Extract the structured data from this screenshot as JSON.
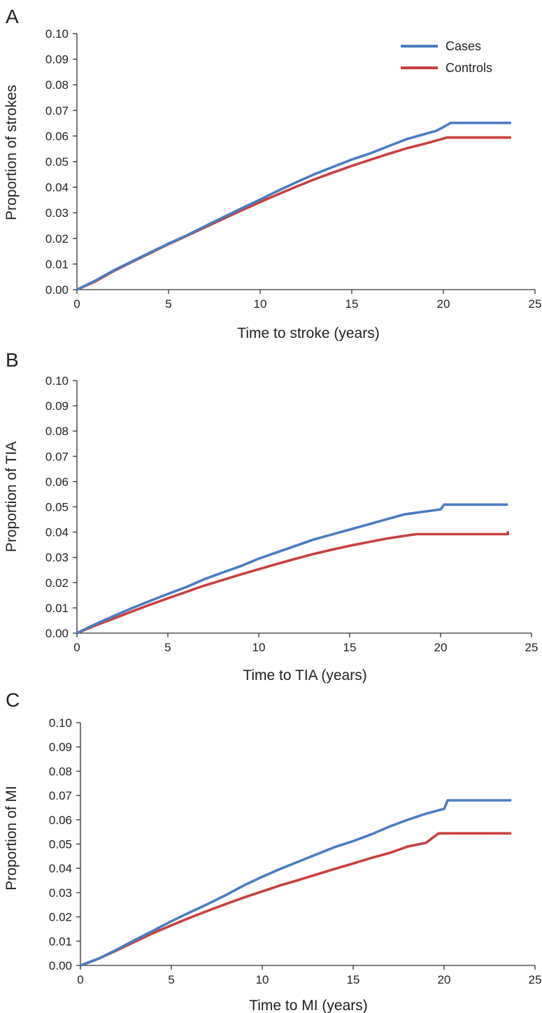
{
  "legend": {
    "entries": [
      {
        "name": "Cases",
        "color": "#4a7cc2"
      },
      {
        "name": "Controls",
        "color": "#c8403f"
      }
    ],
    "placement": "top-right of panel A"
  },
  "chart_data": [
    {
      "type": "line",
      "panel": "A",
      "title": "",
      "xlabel": "Time to stroke (years)",
      "ylabel": "Proportion of strokes",
      "xlim": [
        0,
        25
      ],
      "ylim": [
        0,
        0.1
      ],
      "xticks": [
        "0",
        "5",
        "10",
        "15",
        "20",
        "25"
      ],
      "yticks": [
        "0.00",
        "0.01",
        "0.02",
        "0.03",
        "0.04",
        "0.05",
        "0.06",
        "0.07",
        "0.08",
        "0.09",
        "0.10"
      ],
      "grid": false,
      "step": true,
      "series": [
        {
          "name": "Cases",
          "color": "#4a7cc2",
          "x": [
            0,
            1,
            2,
            3,
            4,
            5,
            6,
            7,
            8,
            9,
            10,
            11,
            12,
            13,
            14,
            15,
            16,
            17,
            18,
            19,
            19.6,
            20.0,
            20.4,
            23.7
          ],
          "y": [
            0,
            0.0035,
            0.0075,
            0.011,
            0.0145,
            0.018,
            0.0212,
            0.0248,
            0.0283,
            0.0318,
            0.0352,
            0.0387,
            0.042,
            0.0452,
            0.048,
            0.0508,
            0.0532,
            0.056,
            0.0588,
            0.0608,
            0.062,
            0.0635,
            0.0651,
            0.0651
          ]
        },
        {
          "name": "Controls",
          "color": "#c8403f",
          "x": [
            0,
            1,
            2,
            3,
            4,
            5,
            6,
            7,
            8,
            9,
            10,
            11,
            12,
            13,
            14,
            15,
            16,
            17,
            18,
            19,
            19.5,
            20.2,
            23.7
          ],
          "y": [
            0,
            0.0032,
            0.0072,
            0.0108,
            0.0143,
            0.0178,
            0.021,
            0.0244,
            0.0277,
            0.031,
            0.0342,
            0.0373,
            0.0403,
            0.0432,
            0.0458,
            0.0483,
            0.0507,
            0.053,
            0.0552,
            0.057,
            0.058,
            0.0594,
            0.0594
          ]
        }
      ]
    },
    {
      "type": "line",
      "panel": "B",
      "title": "",
      "xlabel": "Time to TIA (years)",
      "ylabel": "Proportion of TIA",
      "xlim": [
        0,
        25
      ],
      "ylim": [
        0,
        0.1
      ],
      "xticks": [
        "0",
        "5",
        "10",
        "15",
        "20",
        "25"
      ],
      "yticks": [
        "0.00",
        "0.01",
        "0.02",
        "0.03",
        "0.04",
        "0.05",
        "0.06",
        "0.07",
        "0.08",
        "0.09",
        "0.10"
      ],
      "grid": false,
      "step": true,
      "series": [
        {
          "name": "Cases",
          "color": "#4a7cc2",
          "x": [
            0,
            1,
            2,
            3,
            4,
            5,
            6,
            7,
            8,
            9,
            10,
            11,
            12,
            13,
            14,
            15,
            16,
            17,
            18,
            19,
            20,
            20.2,
            23.7
          ],
          "y": [
            0,
            0.0035,
            0.0067,
            0.0098,
            0.0127,
            0.0155,
            0.0182,
            0.0213,
            0.024,
            0.0265,
            0.0295,
            0.032,
            0.0345,
            0.037,
            0.039,
            0.041,
            0.043,
            0.045,
            0.047,
            0.048,
            0.049,
            0.0509,
            0.0509
          ]
        },
        {
          "name": "Controls",
          "color": "#c8403f",
          "x": [
            0,
            1,
            2,
            3,
            4,
            5,
            6,
            7,
            8,
            9,
            10,
            11,
            12,
            13,
            14,
            15,
            16,
            17,
            18,
            18.7,
            23.7
          ],
          "y": [
            0,
            0.003,
            0.0057,
            0.0085,
            0.0112,
            0.0138,
            0.0163,
            0.0188,
            0.021,
            0.0232,
            0.0253,
            0.0274,
            0.0294,
            0.0313,
            0.033,
            0.0346,
            0.036,
            0.0374,
            0.0385,
            0.0392,
            0.0404
          ]
        }
      ]
    },
    {
      "type": "line",
      "panel": "C",
      "title": "",
      "xlabel": "Time to MI (years)",
      "ylabel": "Proportion of MI",
      "xlim": [
        0,
        25
      ],
      "ylim": [
        0,
        0.1
      ],
      "xticks": [
        "0",
        "5",
        "10",
        "15",
        "20",
        "25"
      ],
      "yticks": [
        "0.00",
        "0.01",
        "0.02",
        "0.03",
        "0.04",
        "0.05",
        "0.06",
        "0.07",
        "0.08",
        "0.09",
        "0.10"
      ],
      "grid": false,
      "step": true,
      "series": [
        {
          "name": "Cases",
          "color": "#4a7cc2",
          "x": [
            0,
            1,
            2,
            3,
            4,
            5,
            6,
            7,
            8,
            9,
            10,
            11,
            12,
            13,
            14,
            15,
            16,
            17,
            18,
            19,
            20.0,
            20.2,
            23.7
          ],
          "y": [
            0,
            0.0028,
            0.0065,
            0.0105,
            0.0143,
            0.0182,
            0.0218,
            0.0253,
            0.029,
            0.033,
            0.0365,
            0.0398,
            0.0428,
            0.0458,
            0.0488,
            0.0512,
            0.054,
            0.0572,
            0.06,
            0.0625,
            0.0645,
            0.068,
            0.068
          ]
        },
        {
          "name": "Controls",
          "color": "#c8403f",
          "x": [
            0,
            1,
            2,
            3,
            4,
            5,
            6,
            7,
            8,
            9,
            10,
            11,
            12,
            13,
            14,
            15,
            16,
            17,
            18,
            19,
            19.7,
            23.7
          ],
          "y": [
            0,
            0.0028,
            0.0062,
            0.0098,
            0.0133,
            0.0165,
            0.0196,
            0.0225,
            0.0253,
            0.028,
            0.0305,
            0.033,
            0.0352,
            0.0375,
            0.0398,
            0.042,
            0.0443,
            0.0463,
            0.049,
            0.0505,
            0.0544,
            0.0544
          ]
        }
      ]
    }
  ]
}
